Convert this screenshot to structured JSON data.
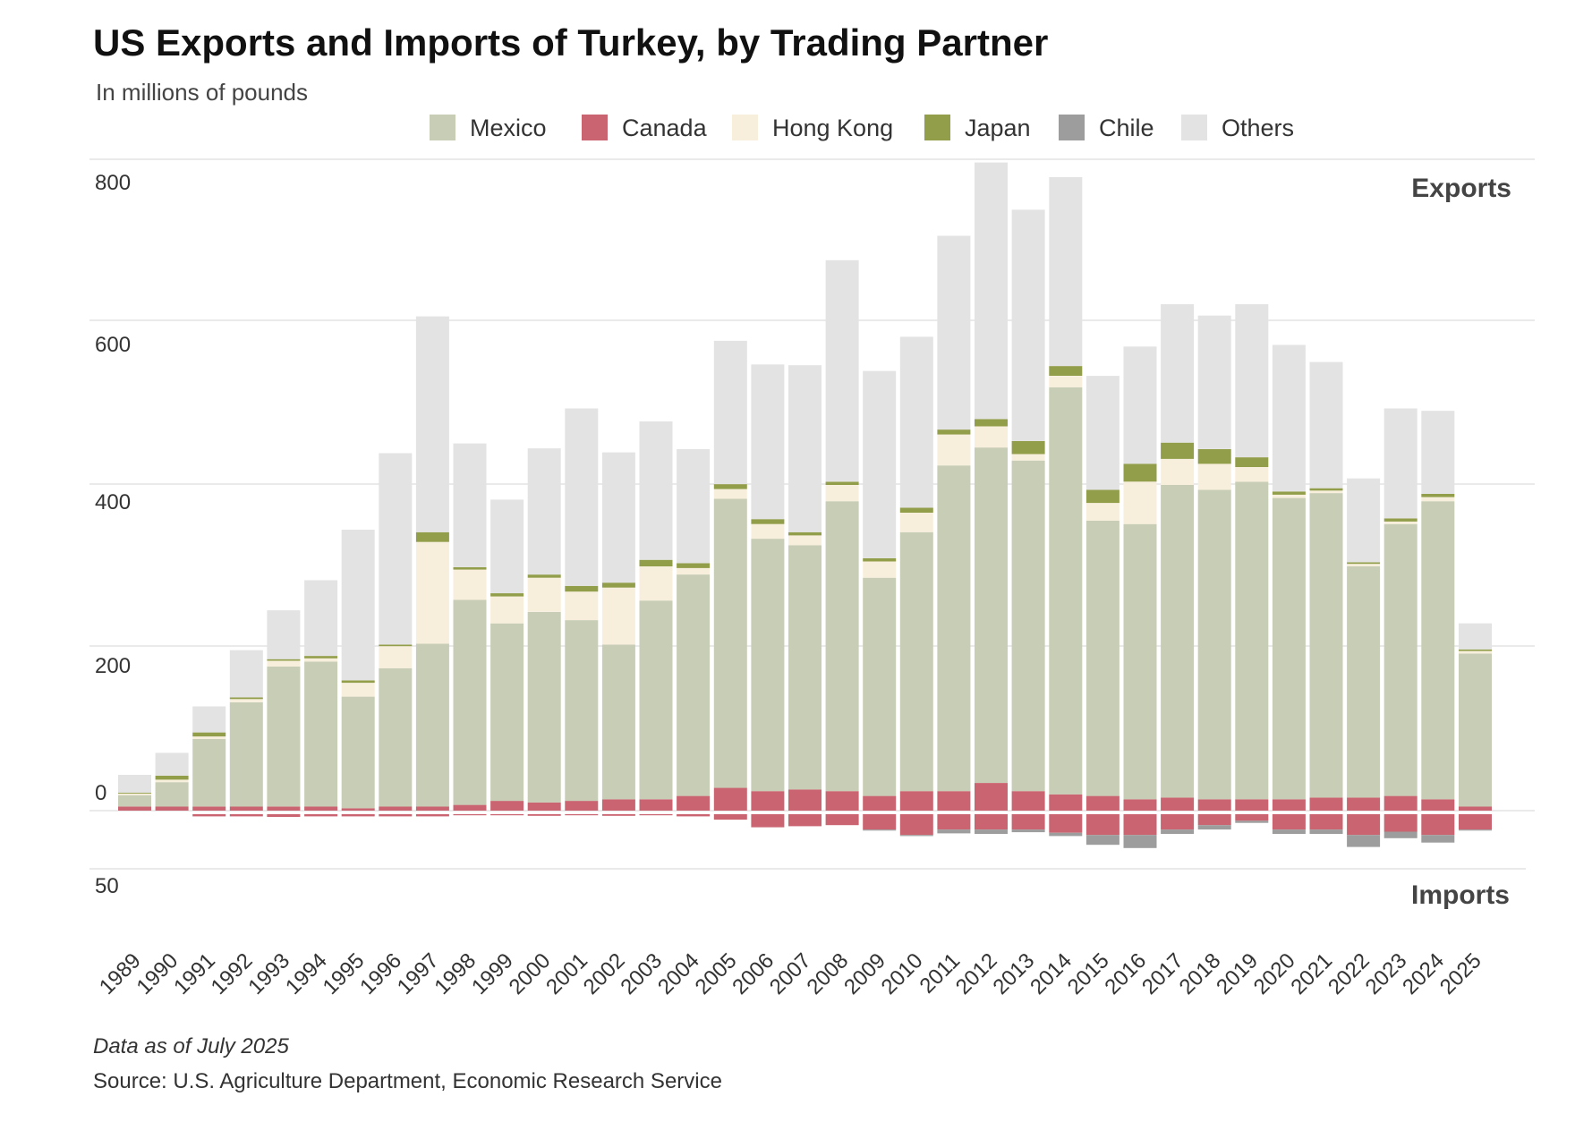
{
  "chart_data": {
    "type": "bar",
    "stacked": true,
    "title": "US Exports and Imports of Turkey, by Trading Partner",
    "subtitle": "In millions of pounds",
    "export_label": "Exports",
    "import_label": "Imports",
    "note": "Data as of July 2025",
    "source": "Source: U.S. Agriculture Department, Economic Research Service",
    "y_ticks_exports": [
      "800",
      "600",
      "400",
      "200",
      "0"
    ],
    "y_tick_imports": "50",
    "ylim_exports": [
      0,
      800
    ],
    "ylim_imports": [
      0,
      50
    ],
    "legend": [
      {
        "name": "Mexico",
        "color": "#c8cdb5"
      },
      {
        "name": "Canada",
        "color": "#c96470"
      },
      {
        "name": "Hong Kong",
        "color": "#f8eedc"
      },
      {
        "name": "Japan",
        "color": "#939e4a"
      },
      {
        "name": "Chile",
        "color": "#9d9d9d"
      },
      {
        "name": "Others",
        "color": "#e3e3e3"
      }
    ],
    "categories": [
      "1989",
      "1990",
      "1991",
      "1992",
      "1993",
      "1994",
      "1995",
      "1996",
      "1997",
      "1998",
      "1999",
      "2000",
      "2001",
      "2002",
      "2003",
      "2004",
      "2005",
      "2006",
      "2007",
      "2008",
      "2009",
      "2010",
      "2011",
      "2012",
      "2013",
      "2014",
      "2015",
      "2016",
      "2017",
      "2018",
      "2019",
      "2020",
      "2021",
      "2022",
      "2023",
      "2024",
      "2025"
    ],
    "export_series": [
      {
        "name": "Canada",
        "color": "#c96470",
        "values": [
          5,
          5,
          5,
          5,
          5,
          5,
          3,
          5,
          5,
          7,
          12,
          10,
          12,
          14,
          14,
          18,
          28,
          24,
          26,
          24,
          18,
          24,
          24,
          34,
          24,
          20,
          18,
          14,
          16,
          14,
          14,
          14,
          16,
          16,
          18,
          14,
          5
        ]
      },
      {
        "name": "Mexico",
        "color": "#c8cdb5",
        "values": [
          14,
          30,
          83,
          128,
          172,
          178,
          137,
          170,
          200,
          252,
          218,
          234,
          222,
          190,
          244,
          272,
          355,
          310,
          300,
          356,
          268,
          318,
          400,
          412,
          406,
          500,
          338,
          338,
          384,
          380,
          390,
          370,
          374,
          284,
          334,
          366,
          188
        ]
      },
      {
        "name": "Hong Kong",
        "color": "#f8eedc",
        "values": [
          2,
          3,
          3,
          4,
          7,
          4,
          17,
          27,
          125,
          37,
          33,
          42,
          35,
          70,
          42,
          8,
          12,
          18,
          12,
          20,
          20,
          24,
          38,
          26,
          8,
          14,
          22,
          52,
          32,
          32,
          18,
          4,
          3,
          3,
          3,
          5,
          3
        ]
      },
      {
        "name": "Japan",
        "color": "#939e4a",
        "values": [
          1,
          5,
          5,
          2,
          2,
          3,
          3,
          2,
          12,
          3,
          4,
          4,
          7,
          6,
          8,
          6,
          6,
          6,
          4,
          4,
          4,
          6,
          6,
          9,
          16,
          12,
          16,
          22,
          20,
          18,
          12,
          4,
          3,
          2,
          4,
          4,
          2
        ]
      },
      {
        "name": "Others",
        "color": "#e3e3e3",
        "values": [
          22,
          28,
          32,
          58,
          60,
          93,
          185,
          235,
          265,
          152,
          115,
          155,
          218,
          160,
          170,
          140,
          176,
          190,
          205,
          272,
          230,
          210,
          238,
          315,
          284,
          232,
          140,
          144,
          170,
          164,
          188,
          180,
          155,
          103,
          135,
          102,
          32
        ]
      }
    ],
    "import_series": [
      {
        "name": "Canada",
        "color": "#c96470",
        "values": [
          0,
          0,
          2,
          2,
          2.5,
          2,
          2,
          2,
          2,
          1,
          1,
          1.5,
          1,
          1.5,
          1,
          2,
          5,
          12,
          11,
          10,
          14,
          19,
          14,
          14,
          14,
          17,
          19,
          19,
          14,
          10,
          6,
          14,
          14,
          19,
          16,
          19,
          14
        ]
      },
      {
        "name": "Chile",
        "color": "#9d9d9d",
        "values": [
          0,
          0,
          0,
          0,
          0,
          0,
          0,
          0,
          0,
          0,
          0,
          0,
          0,
          0,
          0,
          0,
          0,
          0,
          0,
          0,
          1,
          1,
          3.5,
          4,
          2.5,
          3,
          9,
          12,
          4,
          4,
          2,
          4,
          4,
          11,
          6,
          7,
          1
        ]
      }
    ]
  }
}
